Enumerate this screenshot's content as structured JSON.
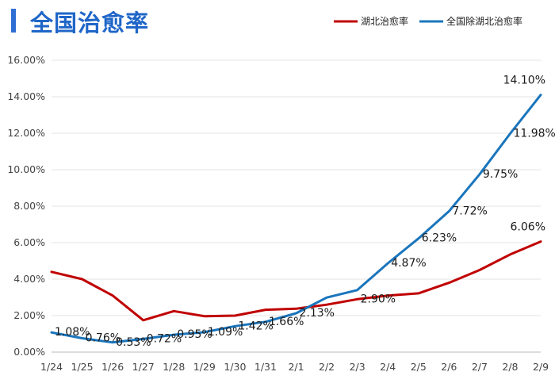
{
  "chart_data": {
    "type": "line",
    "title": "全国治愈率",
    "categories": [
      "1/24",
      "1/25",
      "1/26",
      "1/27",
      "1/28",
      "1/29",
      "1/30",
      "1/31",
      "2/1",
      "2/2",
      "2/3",
      "2/4",
      "2/5",
      "2/6",
      "2/7",
      "2/8",
      "2/9"
    ],
    "ylim": [
      0,
      16
    ],
    "yticks": [
      "0.00%",
      "2.00%",
      "4.00%",
      "6.00%",
      "8.00%",
      "10.00%",
      "12.00%",
      "14.00%",
      "16.00%"
    ],
    "grid": true,
    "legend_position": "top-right",
    "series": [
      {
        "name": "湖北治愈率",
        "color": "#C00000",
        "values": [
          4.4,
          4.0,
          3.1,
          1.75,
          2.25,
          1.97,
          2.0,
          2.32,
          2.38,
          2.6,
          2.9,
          3.1,
          3.22,
          3.8,
          4.5,
          5.35,
          6.06
        ],
        "labels": [
          "",
          "",
          "",
          "",
          "",
          "",
          "",
          "",
          "",
          "",
          "2.90%",
          "",
          "",
          "",
          "",
          "",
          "6.06%"
        ]
      },
      {
        "name": "全国除湖北治愈率",
        "color": "#1A75BC",
        "values": [
          1.08,
          0.76,
          0.53,
          0.72,
          0.95,
          1.09,
          1.42,
          1.66,
          2.13,
          2.99,
          3.4,
          4.87,
          6.23,
          7.72,
          9.75,
          11.98,
          14.1
        ],
        "labels": [
          "1.08%",
          "0.76%",
          "0.53%",
          "0.72%",
          "0.95%",
          "1.09%",
          "1.42%",
          "1.66%",
          "2.13%",
          "",
          "",
          "4.87%",
          "6.23%",
          "7.72%",
          "9.75%",
          "11.98%",
          "14.10%"
        ]
      }
    ]
  }
}
